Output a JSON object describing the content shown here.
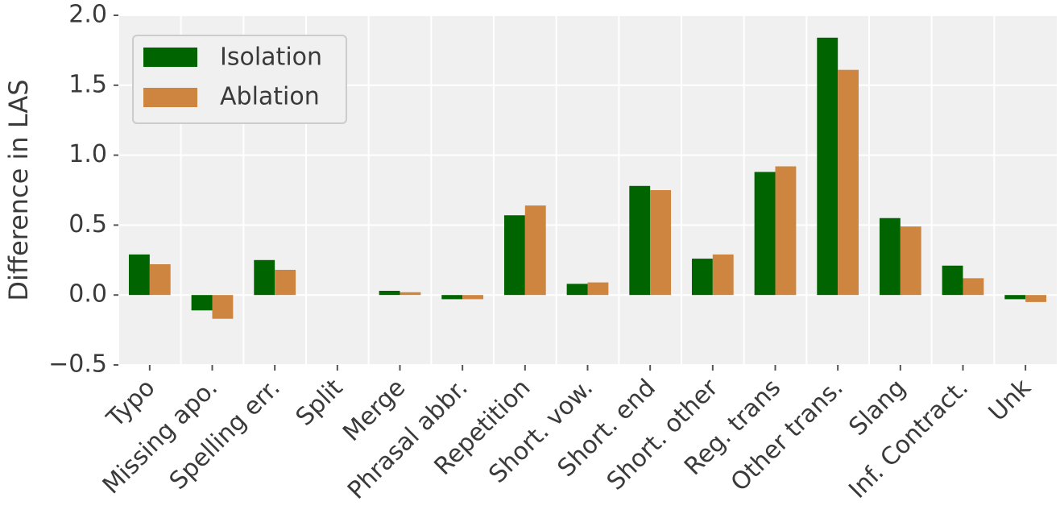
{
  "chart_data": {
    "type": "bar",
    "ylabel": "Difference in LAS",
    "xlabel": "",
    "ylim": [
      -0.5,
      2.0
    ],
    "yticks": [
      -0.5,
      0.0,
      0.5,
      1.0,
      1.5,
      2.0
    ],
    "ytick_labels": [
      "−0.5",
      "0.0",
      "0.5",
      "1.0",
      "1.5",
      "2.0"
    ],
    "grid": true,
    "legend_position": "top-left",
    "categories": [
      "Typo",
      "Missing apo.",
      "Spelling err.",
      "Split",
      "Merge",
      "Phrasal abbr.",
      "Repetition",
      "Short. vow.",
      "Short. end",
      "Short. other",
      "Reg. trans",
      "Other trans.",
      "Slang",
      "Inf. Contract.",
      "Unk"
    ],
    "series": [
      {
        "name": "Isolation",
        "color": "#006400",
        "values": [
          0.29,
          -0.11,
          0.25,
          0.0,
          0.03,
          -0.03,
          0.57,
          0.08,
          0.78,
          0.26,
          0.88,
          1.84,
          0.55,
          0.21,
          -0.03
        ]
      },
      {
        "name": "Ablation",
        "color": "#cd853f",
        "values": [
          0.22,
          -0.17,
          0.18,
          0.0,
          0.02,
          -0.03,
          0.64,
          0.09,
          0.75,
          0.29,
          0.92,
          1.61,
          0.49,
          0.12,
          -0.05
        ]
      }
    ]
  }
}
